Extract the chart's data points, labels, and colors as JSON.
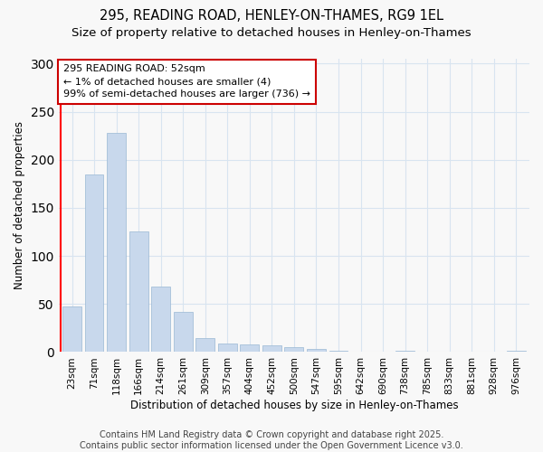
{
  "title_line1": "295, READING ROAD, HENLEY-ON-THAMES, RG9 1EL",
  "title_line2": "Size of property relative to detached houses in Henley-on-Thames",
  "xlabel": "Distribution of detached houses by size in Henley-on-Thames",
  "ylabel": "Number of detached properties",
  "categories": [
    "23sqm",
    "71sqm",
    "118sqm",
    "166sqm",
    "214sqm",
    "261sqm",
    "309sqm",
    "357sqm",
    "404sqm",
    "452sqm",
    "500sqm",
    "547sqm",
    "595sqm",
    "642sqm",
    "690sqm",
    "738sqm",
    "785sqm",
    "833sqm",
    "881sqm",
    "928sqm",
    "976sqm"
  ],
  "values": [
    47,
    185,
    228,
    125,
    68,
    42,
    15,
    9,
    8,
    7,
    5,
    3,
    1,
    0,
    0,
    1,
    0,
    0,
    0,
    0,
    1
  ],
  "bar_color": "#c8d8ec",
  "bar_edgecolor": "#9ab8d4",
  "annotation_text_line1": "295 READING ROAD: 52sqm",
  "annotation_text_line2": "← 1% of detached houses are smaller (4)",
  "annotation_text_line3": "99% of semi-detached houses are larger (736) →",
  "annotation_box_edge_color": "#cc0000",
  "annotation_box_face_color": "#ffffff",
  "red_line_x": -0.5,
  "ylim": [
    0,
    305
  ],
  "yticks": [
    0,
    50,
    100,
    150,
    200,
    250,
    300
  ],
  "bg_color": "#f8f8f8",
  "plot_bg_color": "#f8f8f8",
  "grid_color": "#d8e4f0",
  "title_fontsize": 10.5,
  "subtitle_fontsize": 9.5,
  "axis_label_fontsize": 8.5,
  "tick_fontsize": 7.5,
  "annotation_fontsize": 8,
  "footer_fontsize": 7,
  "footer_line1": "Contains HM Land Registry data © Crown copyright and database right 2025.",
  "footer_line2": "Contains public sector information licensed under the Open Government Licence v3.0."
}
